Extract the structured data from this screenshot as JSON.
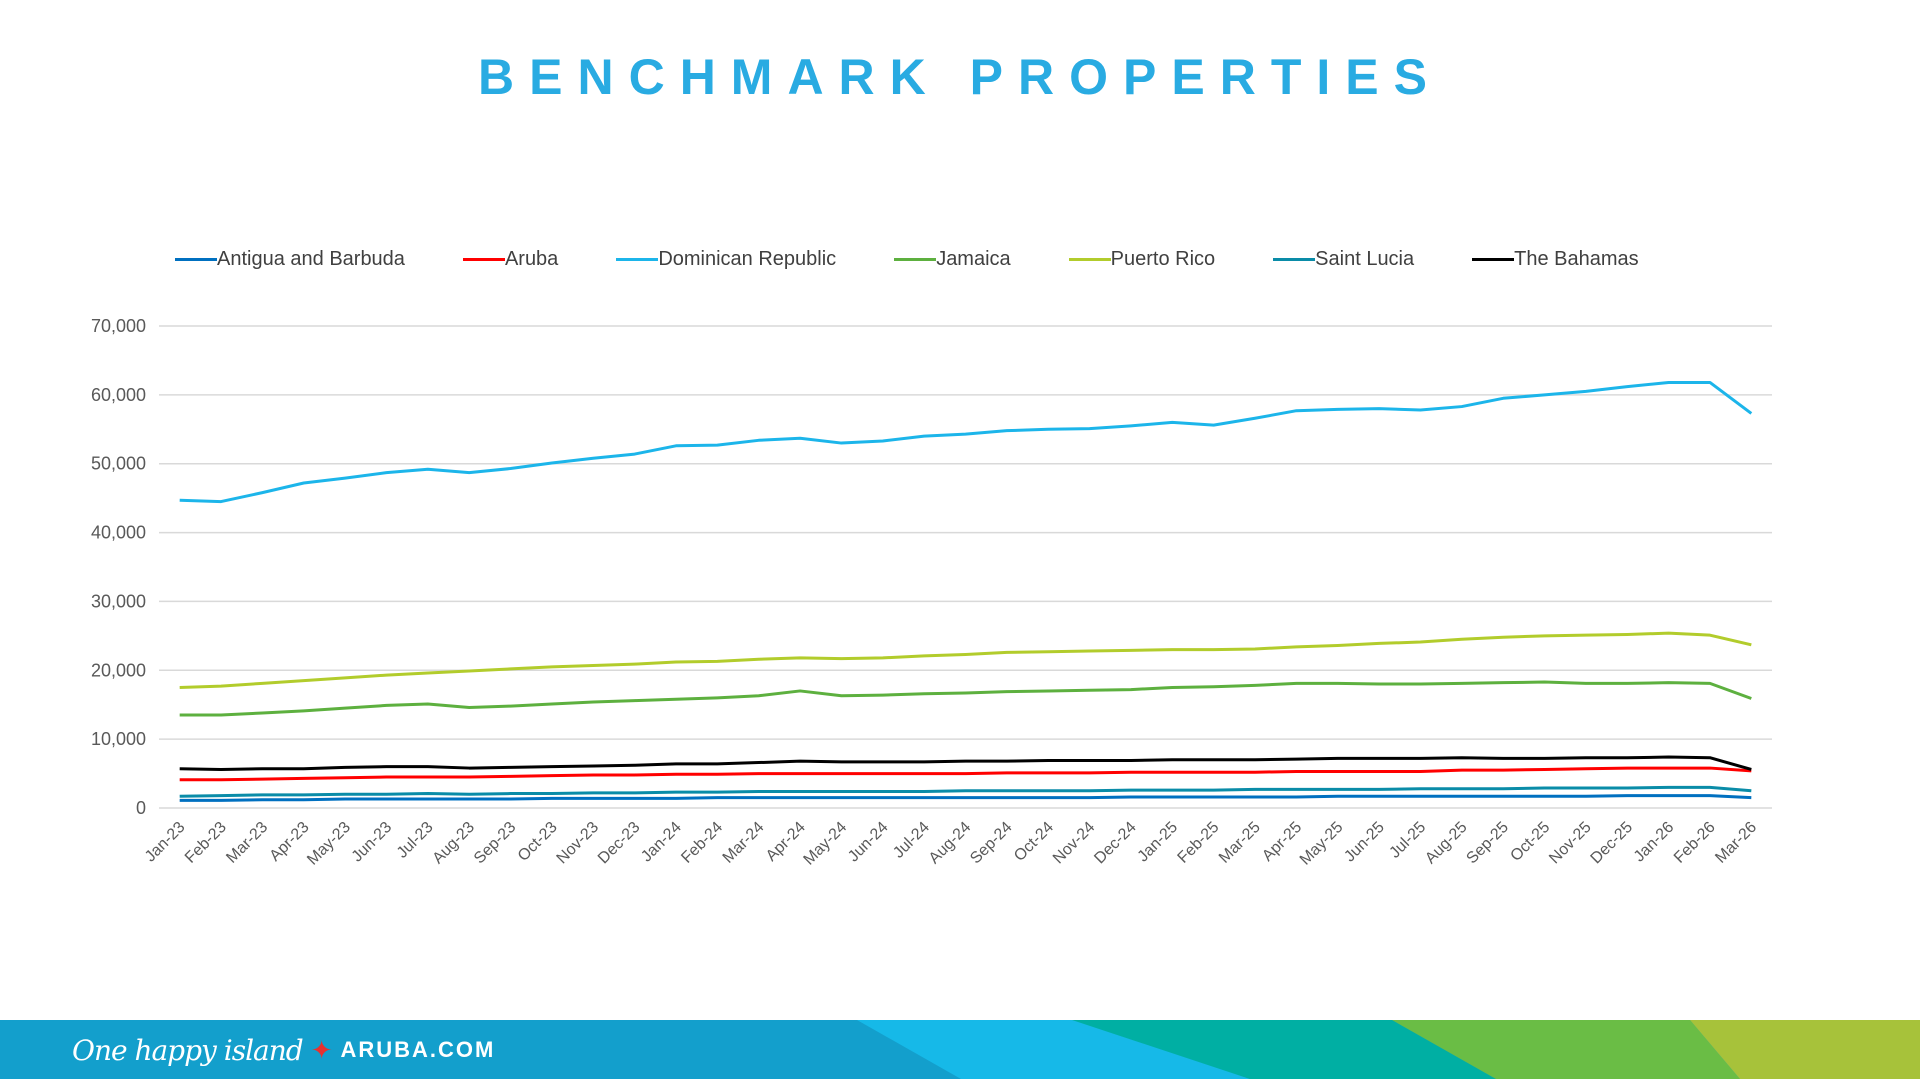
{
  "title": "BENCHMARK PROPERTIES",
  "chart_data": {
    "type": "line",
    "title": "",
    "xlabel": "",
    "ylabel": "",
    "ylim": [
      0,
      70000
    ],
    "yticks": [
      "0",
      "10,000",
      "20,000",
      "30,000",
      "40,000",
      "50,000",
      "60,000",
      "70,000"
    ],
    "grid": true,
    "legend_position": "top",
    "categories": [
      "Jan-23",
      "Feb-23",
      "Mar-23",
      "Apr-23",
      "May-23",
      "Jun-23",
      "Jul-23",
      "Aug-23",
      "Sep-23",
      "Oct-23",
      "Nov-23",
      "Dec-23",
      "Jan-24",
      "Feb-24",
      "Mar-24",
      "Apr-24",
      "May-24",
      "Jun-24",
      "Jul-24",
      "Aug-24",
      "Sep-24",
      "Oct-24",
      "Nov-24",
      "Dec-24",
      "Jan-25",
      "Feb-25",
      "Mar-25",
      "Apr-25",
      "May-25",
      "Jun-25",
      "Jul-25",
      "Aug-25",
      "Sep-25",
      "Oct-25",
      "Nov-25",
      "Dec-25",
      "Jan-26",
      "Feb-26",
      "Mar-26"
    ],
    "series": [
      {
        "name": "Antigua and Barbuda",
        "color": "#0070C0",
        "values": [
          1100,
          1100,
          1200,
          1200,
          1300,
          1300,
          1300,
          1300,
          1300,
          1400,
          1400,
          1400,
          1400,
          1500,
          1500,
          1500,
          1500,
          1500,
          1500,
          1500,
          1500,
          1500,
          1500,
          1600,
          1600,
          1600,
          1600,
          1600,
          1700,
          1700,
          1700,
          1700,
          1700,
          1700,
          1700,
          1800,
          1800,
          1800,
          1500
        ]
      },
      {
        "name": "Aruba",
        "color": "#FF0000",
        "values": [
          4100,
          4100,
          4200,
          4300,
          4400,
          4500,
          4500,
          4500,
          4600,
          4700,
          4800,
          4800,
          4900,
          4900,
          5000,
          5000,
          5000,
          5000,
          5000,
          5000,
          5100,
          5100,
          5100,
          5200,
          5200,
          5200,
          5200,
          5300,
          5300,
          5300,
          5300,
          5500,
          5500,
          5600,
          5700,
          5800,
          5800,
          5800,
          5400
        ]
      },
      {
        "name": "Dominican Republic",
        "color": "#1CB5EA",
        "values": [
          44700,
          44500,
          45800,
          47200,
          47900,
          48700,
          49200,
          48700,
          49300,
          50100,
          50800,
          51400,
          52600,
          52700,
          53400,
          53700,
          53000,
          53300,
          54000,
          54300,
          54800,
          55000,
          55100,
          55500,
          56000,
          55600,
          56600,
          57700,
          57900,
          58000,
          57800,
          58300,
          59500,
          60000,
          60500,
          61200,
          61800,
          61800,
          57300
        ]
      },
      {
        "name": "Jamaica",
        "color": "#5DB03F",
        "values": [
          13500,
          13500,
          13800,
          14100,
          14500,
          14900,
          15100,
          14600,
          14800,
          15100,
          15400,
          15600,
          15800,
          16000,
          16300,
          17000,
          16300,
          16400,
          16600,
          16700,
          16900,
          17000,
          17100,
          17200,
          17500,
          17600,
          17800,
          18100,
          18100,
          18000,
          18000,
          18100,
          18200,
          18300,
          18100,
          18100,
          18200,
          18100,
          15900
        ]
      },
      {
        "name": "Puerto Rico",
        "color": "#B2CC2C",
        "values": [
          17500,
          17700,
          18100,
          18500,
          18900,
          19300,
          19600,
          19900,
          20200,
          20500,
          20700,
          20900,
          21200,
          21300,
          21600,
          21800,
          21700,
          21800,
          22100,
          22300,
          22600,
          22700,
          22800,
          22900,
          23000,
          23000,
          23100,
          23400,
          23600,
          23900,
          24100,
          24500,
          24800,
          25000,
          25100,
          25200,
          25400,
          25100,
          23700
        ]
      },
      {
        "name": "Saint Lucia",
        "color": "#0A8CA8",
        "values": [
          1700,
          1800,
          1900,
          1900,
          2000,
          2000,
          2100,
          2000,
          2100,
          2100,
          2200,
          2200,
          2300,
          2300,
          2400,
          2400,
          2400,
          2400,
          2400,
          2500,
          2500,
          2500,
          2500,
          2600,
          2600,
          2600,
          2700,
          2700,
          2700,
          2700,
          2800,
          2800,
          2800,
          2900,
          2900,
          2900,
          3000,
          3000,
          2500
        ]
      },
      {
        "name": "The Bahamas",
        "color": "#000000",
        "values": [
          5700,
          5600,
          5700,
          5700,
          5900,
          6000,
          6000,
          5800,
          5900,
          6000,
          6100,
          6200,
          6400,
          6400,
          6600,
          6800,
          6700,
          6700,
          6700,
          6800,
          6800,
          6900,
          6900,
          6900,
          7000,
          7000,
          7000,
          7100,
          7200,
          7200,
          7200,
          7300,
          7200,
          7200,
          7300,
          7300,
          7400,
          7300,
          5600
        ]
      }
    ]
  },
  "footer": {
    "tagline": "One happy island",
    "site": "ARUBA.COM",
    "colors": [
      "#139FCC",
      "#16B9E8",
      "#00AFA3",
      "#6ABD45",
      "#A7C23A"
    ]
  }
}
